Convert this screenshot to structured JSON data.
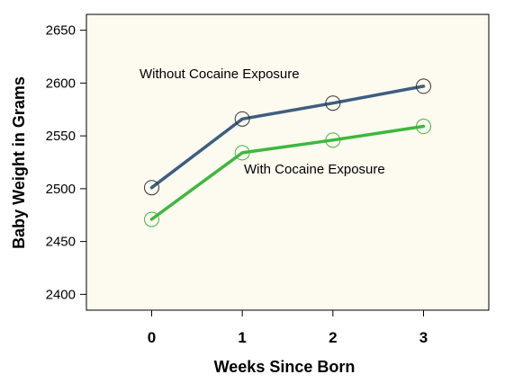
{
  "chart_data": {
    "type": "line",
    "x": [
      0,
      1,
      2,
      3
    ],
    "xticks": [
      "0",
      "1",
      "2",
      "3"
    ],
    "xlim": [
      -0.72,
      3.72
    ],
    "yticks": [
      "2400",
      "2450",
      "2500",
      "2550",
      "2600",
      "2650"
    ],
    "ylim": [
      2385,
      2665
    ],
    "xlabel": "Weeks Since Born",
    "ylabel": "Baby Weight in Grams",
    "title": "",
    "legend": "none",
    "grid": false,
    "background": "#fdfaf0",
    "series": [
      {
        "name": "Without Cocaine Exposure",
        "values": [
          2501,
          2566,
          2581,
          2597
        ],
        "color": "#3d5e80",
        "marker_color": "#333333"
      },
      {
        "name": "With Cocaine Exposure",
        "values": [
          2471,
          2534,
          2546,
          2559
        ],
        "color": "#3db83d",
        "marker_color": "#3db83d"
      }
    ],
    "annotations": [
      {
        "text": "Without Cocaine Exposure",
        "series": 0
      },
      {
        "text": "With Cocaine Exposure",
        "series": 1
      }
    ]
  }
}
